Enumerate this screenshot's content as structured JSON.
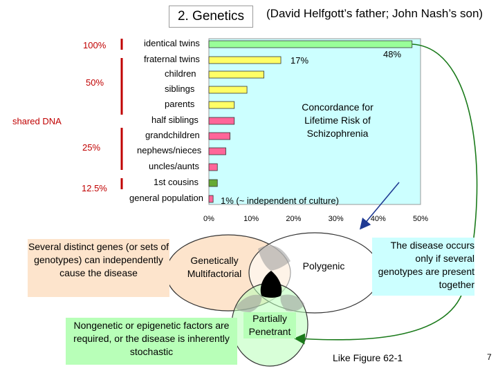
{
  "header": {
    "title": "2.  Genetics",
    "subtitle": "(David Helfgott’s father; John Nash’s son)"
  },
  "shared_dna": {
    "label": "shared DNA",
    "levels": [
      "100%",
      "50%",
      "25%",
      "12.5%"
    ]
  },
  "chart_data": {
    "type": "bar",
    "orientation": "horizontal",
    "categories": [
      "identical twins",
      "fraternal twins",
      "children",
      "siblings",
      "parents",
      "half siblings",
      "grandchildren",
      "nephews/nieces",
      "uncles/aunts",
      "1st cousins",
      "general population"
    ],
    "values": [
      48,
      17,
      13,
      9,
      6,
      6,
      5,
      4,
      2,
      2,
      1
    ],
    "bar_colors": [
      "#99ff99",
      "#ffff66",
      "#ffff66",
      "#ffff66",
      "#ffff66",
      "#ff6699",
      "#ff6699",
      "#ff6699",
      "#ff6699",
      "#66aa33",
      "#ff6699"
    ],
    "data_labels": {
      "identical twins": "48%",
      "fraternal twins": "17%",
      "general population": "1% (~ independent of culture)"
    },
    "xlim": [
      0,
      50
    ],
    "xticks": [
      "0%",
      "10%",
      "20%",
      "30%",
      "40%",
      "50%"
    ],
    "annotation": "Concordance for Lifetime Risk of Schizophrenia",
    "grid": false
  },
  "venn": {
    "genetically_multifactorial": "Genetically Multifactorial",
    "polygenic": "Polygenic",
    "partially_penetrant": "Partially Penetrant"
  },
  "boxes": {
    "distinct_genes": "Several distinct genes (or sets of genotypes) can independently cause the disease",
    "nongenetic": "Nongenetic or epigenetic factors are required, or the disease is inherently stochastic",
    "several_genotypes": "The disease occurs only if several genotypes are present together"
  },
  "footer": {
    "reference": "Like Figure 62-1",
    "page_number": "7"
  },
  "colors": {
    "shared_dna": "#c00000",
    "plot_background": "#ccffff",
    "distinct_genes_box": "#fde4cc",
    "nongenetic_box": "#b8ffb8",
    "several_genotypes_box": "#ccffff",
    "arrow_green": "#1a7a1a",
    "arrow_blue": "#1f3a93"
  }
}
